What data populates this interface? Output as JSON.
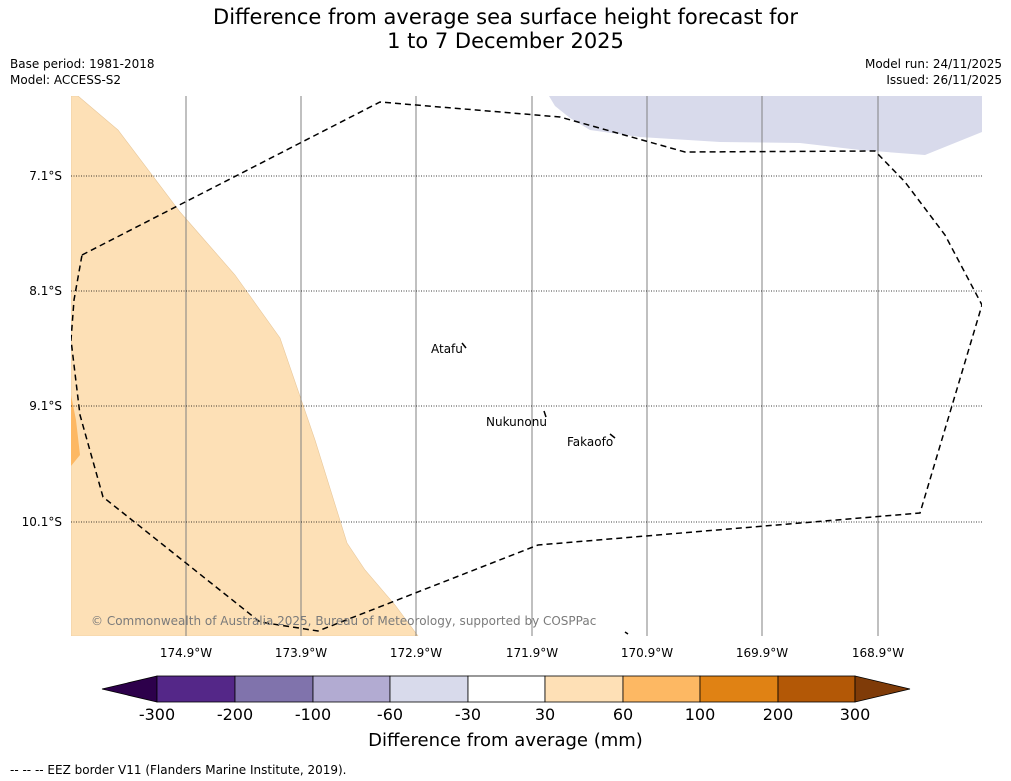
{
  "title": {
    "line1": "Difference from average sea surface height forecast for",
    "line2": "1 to 7 December 2025"
  },
  "meta": {
    "base_period": "Base period: 1981-2018",
    "model": "Model: ACCESS-S2",
    "model_run": "Model run: 24/11/2025",
    "issued": "Issued: 26/11/2025"
  },
  "map": {
    "latitude_labels": [
      "7.1°S",
      "8.1°S",
      "9.1°S",
      "10.1°S"
    ],
    "longitude_labels": [
      "174.9°W",
      "173.9°W",
      "172.9°W",
      "171.9°W",
      "170.9°W",
      "169.9°W",
      "168.9°W"
    ],
    "places": [
      {
        "name": "Atafu"
      },
      {
        "name": "Nukunonu"
      },
      {
        "name": "Fakaofo"
      }
    ],
    "credit": "© Commonwealth of Australia 2025, Bureau of Meteorology, supported by COSPPac",
    "colors": {
      "light_orange": "#fde0b6",
      "orange": "#fdb863",
      "light_purple": "#d8daeb",
      "eez_border": "#000000"
    }
  },
  "colorbar": {
    "title": "Difference from average (mm)",
    "tick_labels": [
      "-300",
      "-200",
      "-100",
      "-60",
      "-30",
      "30",
      "60",
      "100",
      "200",
      "300"
    ],
    "colors": [
      "#2d004b",
      "#542788",
      "#8073ac",
      "#b2abd2",
      "#d8daeb",
      "#ffffff",
      "#fee0b6",
      "#fdb863",
      "#e08214",
      "#b35806",
      "#7f3b08"
    ]
  },
  "footer": "--  --  -- EEZ border V11 (Flanders Marine Institute, 2019)."
}
